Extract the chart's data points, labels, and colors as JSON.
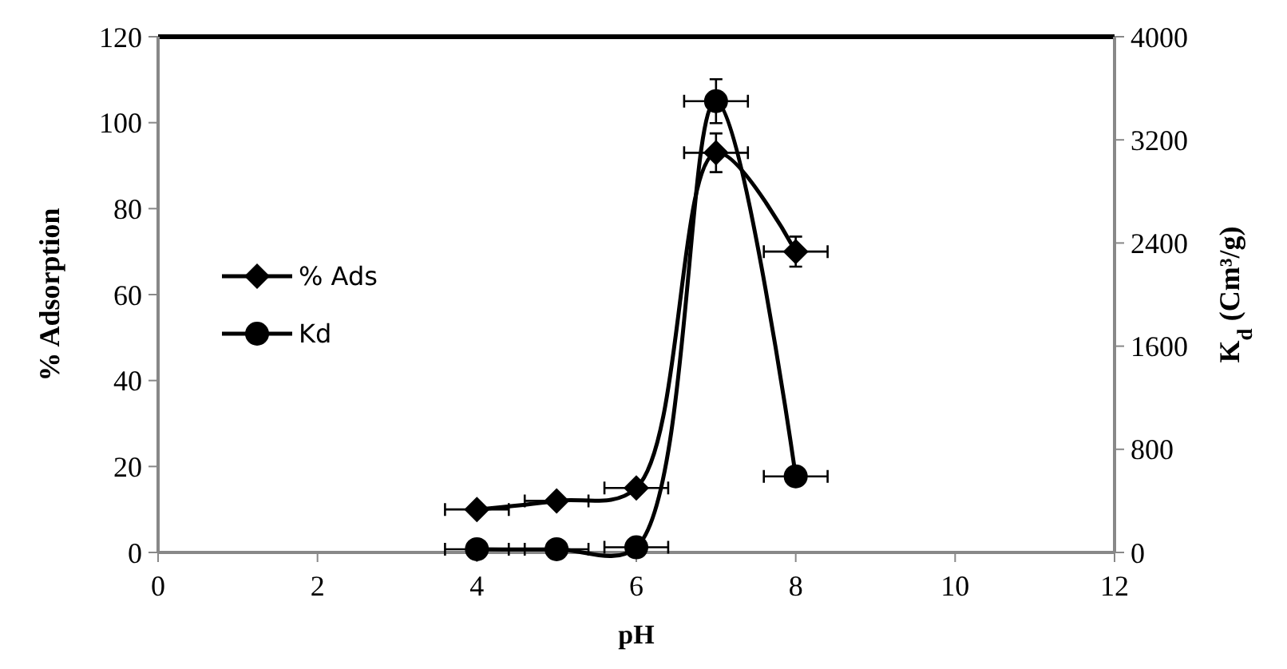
{
  "chart_data": {
    "type": "line",
    "xlabel": "pH",
    "ylabel": "% Adsorption",
    "y2label": "K$_{d}$ (Cm³/g)",
    "x": [
      4,
      5,
      6,
      7,
      8
    ],
    "xlim": [
      0,
      12
    ],
    "xticks": [
      0,
      2,
      4,
      6,
      8,
      10,
      12
    ],
    "ylim": [
      0,
      120
    ],
    "yticks": [
      0,
      20,
      40,
      60,
      80,
      100,
      120
    ],
    "y2lim": [
      0,
      4000
    ],
    "y2ticks": [
      0,
      800,
      1600,
      2400,
      3200,
      4000
    ],
    "legend": "left",
    "grid": false,
    "line_style": "solid",
    "series": [
      {
        "name": "% Ads",
        "color": "#000000",
        "marker": "diamond",
        "values": [
          10,
          12,
          15,
          93,
          70
        ],
        "errors": [
          null,
          null,
          null,
          4.5,
          3.5
        ],
        "xerrors": [
          0.4,
          0.4,
          0.4,
          0.4,
          0.4
        ]
      },
      {
        "name": "Kd",
        "color": "#000000",
        "marker": "circle",
        "axis": "y2",
        "values": [
          25,
          25,
          40,
          3500,
          590
        ],
        "errors": [
          null,
          null,
          null,
          170,
          null
        ],
        "xerrors": [
          0.4,
          0.4,
          0.4,
          0.4,
          0.4
        ]
      }
    ]
  }
}
